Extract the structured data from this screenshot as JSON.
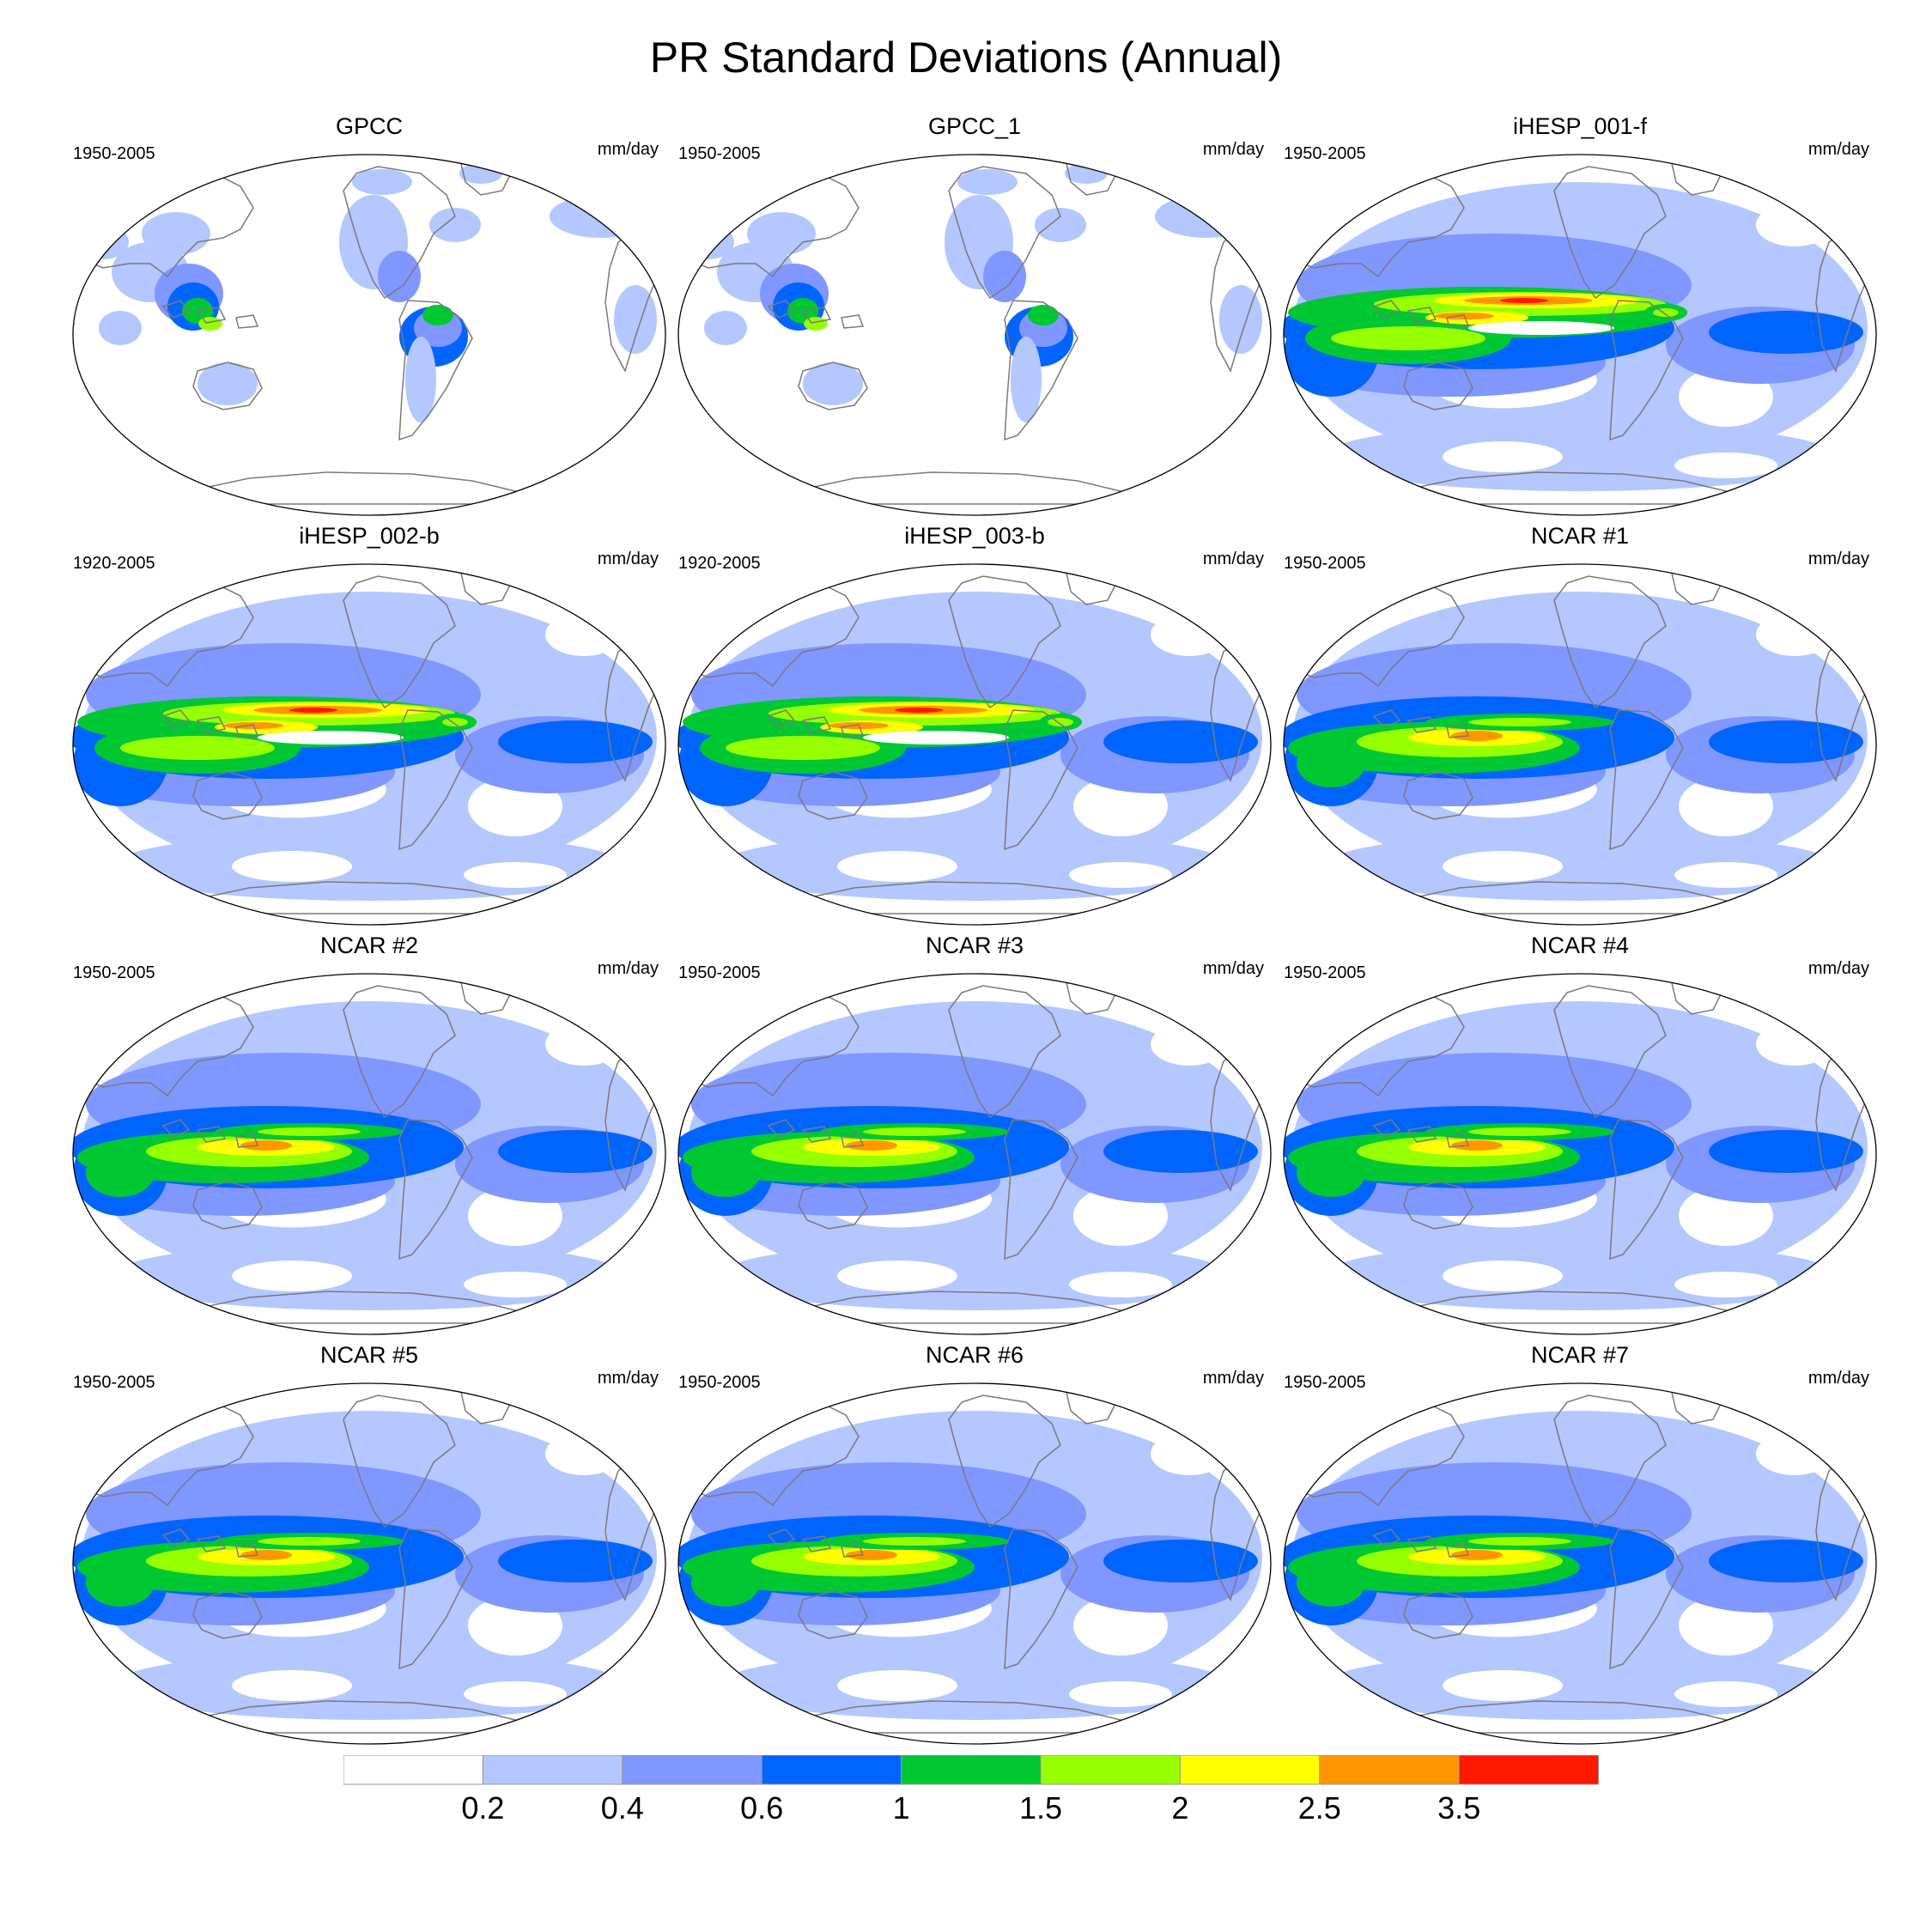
{
  "title": "PR Standard Deviations (Annual)",
  "units": "mm/day",
  "panels": [
    {
      "name": "GPCC",
      "period": "1950-2005",
      "style": "obs"
    },
    {
      "name": "GPCC_1",
      "period": "1950-2005",
      "style": "obs"
    },
    {
      "name": "iHESP_001-f",
      "period": "1950-2005",
      "style": "hires"
    },
    {
      "name": "iHESP_002-b",
      "period": "1920-2005",
      "style": "hires"
    },
    {
      "name": "iHESP_003-b",
      "period": "1920-2005",
      "style": "hires"
    },
    {
      "name": "NCAR #1",
      "period": "1950-2005",
      "style": "ncar"
    },
    {
      "name": "NCAR #2",
      "period": "1950-2005",
      "style": "ncar"
    },
    {
      "name": "NCAR #3",
      "period": "1950-2005",
      "style": "ncar"
    },
    {
      "name": "NCAR #4",
      "period": "1950-2005",
      "style": "ncar"
    },
    {
      "name": "NCAR #5",
      "period": "1950-2005",
      "style": "ncar"
    },
    {
      "name": "NCAR #6",
      "period": "1950-2005",
      "style": "ncar"
    },
    {
      "name": "NCAR #7",
      "period": "1950-2005",
      "style": "ncar"
    }
  ],
  "colorbar": {
    "labels": [
      "0.2",
      "0.4",
      "0.6",
      "1",
      "1.5",
      "2",
      "2.5",
      "3.5"
    ],
    "colors": [
      "#ffffff",
      "#b4c7ff",
      "#8097ff",
      "#0064ff",
      "#00c832",
      "#96ff00",
      "#ffff00",
      "#ff9600",
      "#ff1900"
    ]
  }
}
